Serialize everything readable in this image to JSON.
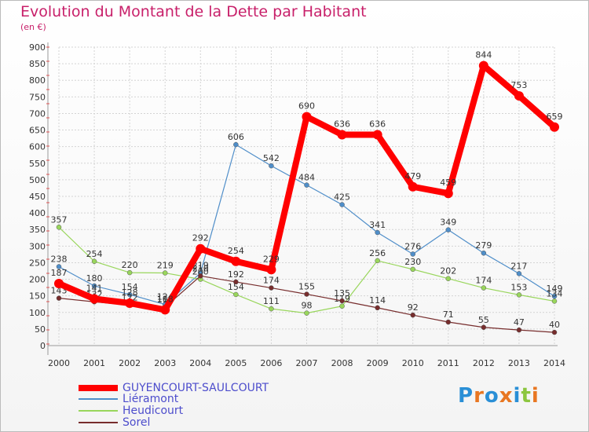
{
  "title": "Evolution du Montant de la Dette par Habitant",
  "subtitle": "(en €)",
  "logo_text": "Proxiti",
  "chart_data": {
    "type": "line",
    "x": [
      "2000",
      "2001",
      "2002",
      "2003",
      "2004",
      "2005",
      "2006",
      "2007",
      "2008",
      "2009",
      "2010",
      "2011",
      "2012",
      "2013",
      "2014"
    ],
    "ylim": [
      0,
      900
    ],
    "yticks": [
      "0",
      "50",
      "100",
      "150",
      "200",
      "250",
      "300",
      "350",
      "400",
      "450",
      "500",
      "550",
      "600",
      "650",
      "700",
      "750",
      "800",
      "850",
      "900"
    ],
    "grid": true,
    "legend_position": "bottom-left",
    "series": [
      {
        "name": "Liéramont",
        "color": "#4f8ec9",
        "values": [
          238,
          180,
          154,
          124,
          219,
          606,
          542,
          484,
          425,
          341,
          276,
          349,
          279,
          217,
          149
        ]
      },
      {
        "name": "Heudicourt",
        "color": "#99d65c",
        "values": [
          357,
          254,
          220,
          219,
          200,
          154,
          111,
          98,
          119,
          256,
          230,
          202,
          174,
          153,
          134
        ]
      },
      {
        "name": "Sorel",
        "color": "#772d2d",
        "values": [
          143,
          132,
          122,
          116,
          210,
          192,
          174,
          155,
          135,
          114,
          92,
          71,
          55,
          47,
          40
        ]
      },
      {
        "name": "GUYENCOURT-SAULCOURT",
        "color": "#ff0000",
        "values": [
          187,
          141,
          128,
          108,
          292,
          254,
          229,
          690,
          636,
          636,
          479,
          459,
          844,
          753,
          659
        ]
      }
    ]
  }
}
